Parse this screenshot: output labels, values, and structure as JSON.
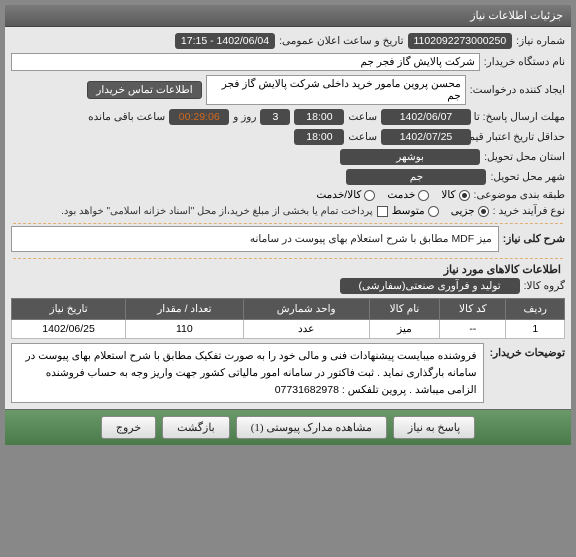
{
  "panel_title": "جزئیات اطلاعات نیاز",
  "fields": {
    "need_no_label": "شماره نیاز:",
    "need_no": "1102092273000250",
    "announce_label": "تاریخ و ساعت اعلان عمومی:",
    "announce_val": "1402/06/04 - 17:15",
    "buyer_org_label": "نام دستگاه خریدار:",
    "buyer_org": "شرکت پالایش گاز فجر جم",
    "requester_label": "ایجاد کننده درخواست:",
    "requester": "محسن پروین مامور خرید داخلی شرکت پالایش گاز فجر جم",
    "contact_btn": "اطلاعات تماس خریدار",
    "deadline_label": "مهلت ارسال پاسخ: تا تاریخ:",
    "deadline_date": "1402/06/07",
    "time_label": "ساعت",
    "deadline_time": "18:00",
    "days_label": "روز و",
    "days_count": "3",
    "countdown": "00:29:06",
    "remaining": "ساعت باقی مانده",
    "validity_label": "حداقل تاریخ اعتبار قیمت: تا تاریخ:",
    "validity_date": "1402/07/25",
    "validity_time": "18:00",
    "province_label": "استان محل تحویل:",
    "province": "بوشهر",
    "city_label": "شهر محل تحویل:",
    "city": "جم",
    "classify_label": "طبقه بندی موضوعی:",
    "cls_goods": "کالا",
    "cls_service": "خدمت",
    "cls_goods_service": "کالا/خدمت",
    "purchase_type_label": "نوع فرآیند خرید :",
    "pt_partial": "جزیی",
    "pt_medium": "متوسط",
    "pay_note": "پرداخت تمام یا بخشی از مبلغ خرید،از محل \"اسناد خزانه اسلامی\" خواهد بود."
  },
  "need_desc": {
    "label": "شرح کلی نیاز:",
    "text": "میز MDF مطابق با شرح استعلام بهای پیوست در سامانه"
  },
  "items_section_title": "اطلاعات کالاهای مورد نیاز",
  "goods_group_label": "گروه کالا:",
  "goods_group": "تولید و فرآوری صنعتی(سفارشی)",
  "table": {
    "headers": [
      "ردیف",
      "کد کالا",
      "نام کالا",
      "واحد شمارش",
      "تعداد / مقدار",
      "تاریخ نیاز"
    ],
    "rows": [
      [
        "1",
        "--",
        "میز",
        "عدد",
        "110",
        "1402/06/25"
      ]
    ]
  },
  "buyer_notes_label": "توضیحات خریدار:",
  "buyer_notes_text": "فروشنده میبایست پیشنهادات فنی و مالی خود را به صورت تفکیک مطابق با شرح استعلام بهای پیوست در سامانه بارگذاری نماید . ثبت فاکتور در سامانه امور مالیاتی کشور جهت واریز وجه به حساب فروشنده الزامی میباشد .  پروین  تلفکس : 07731682978",
  "footer": {
    "respond": "پاسخ به نیاز",
    "attachments": "مشاهده مدارک پیوستی (1)",
    "back": "بازگشت",
    "exit": "خروج"
  }
}
